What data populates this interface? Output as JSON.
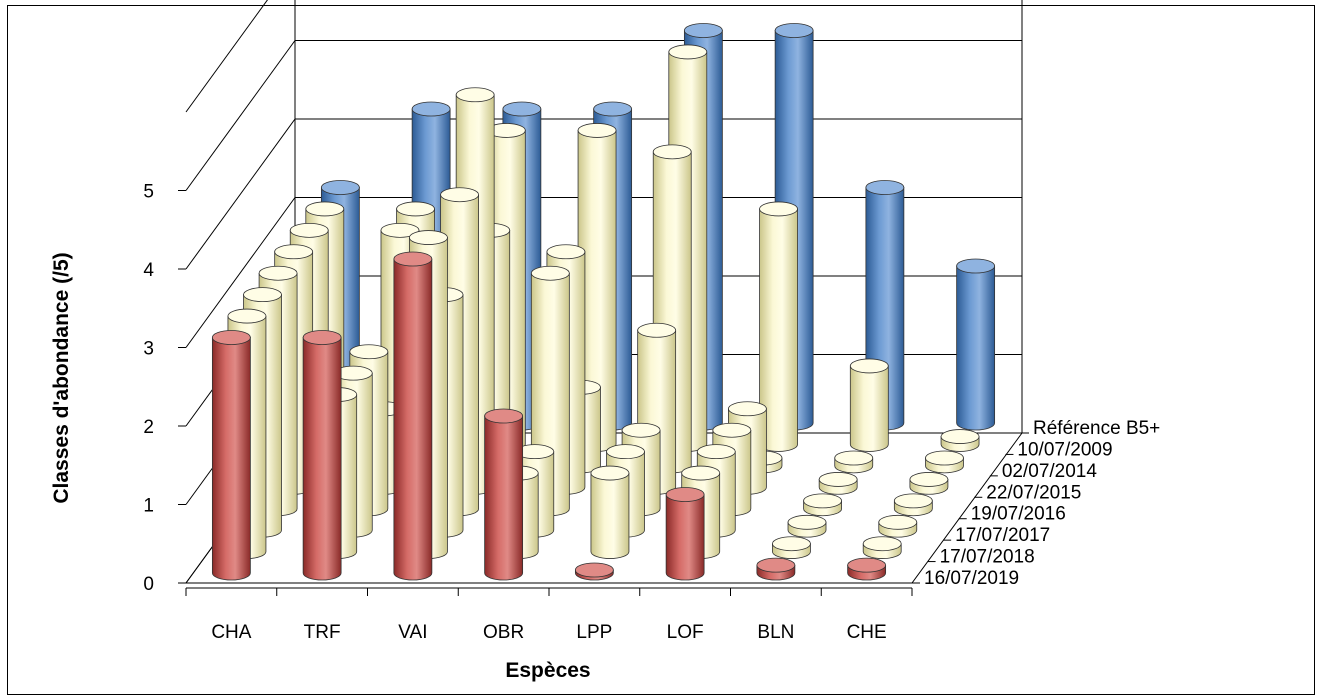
{
  "chart_data": {
    "type": "bar",
    "subtype": "3d-cylinder",
    "title": "",
    "xlabel": "Espèces",
    "ylabel": "Classes d'abondance  (/5)",
    "ylim": [
      0,
      5
    ],
    "yticks": [
      "0",
      "1",
      "2",
      "3",
      "4",
      "5"
    ],
    "categories": [
      "CHA",
      "TRF",
      "VAI",
      "OBR",
      "LPP",
      "LOF",
      "BLN",
      "CHE"
    ],
    "series": [
      {
        "name": "16/07/2019",
        "color": "#c0504d",
        "values": [
          3,
          3,
          4,
          2,
          0,
          1,
          0.1,
          0.1
        ]
      },
      {
        "name": "17/07/2018",
        "color": "#f6f3c0",
        "values": [
          3,
          2,
          4,
          1,
          1,
          1,
          0.1,
          0.1
        ]
      },
      {
        "name": "17/07/2017",
        "color": "#f6f3c0",
        "values": [
          3,
          2,
          3,
          1,
          1,
          1,
          0.1,
          0.1
        ]
      },
      {
        "name": "19/07/2016",
        "color": "#f6f3c0",
        "values": [
          3,
          2,
          4,
          3,
          1,
          1,
          0.1,
          0.1
        ]
      },
      {
        "name": "22/07/2015",
        "color": "#f6f3c0",
        "values": [
          3,
          1,
          5,
          3,
          2,
          1,
          0.1,
          0.1
        ]
      },
      {
        "name": "02/07/2014",
        "color": "#f6f3c0",
        "values": [
          3,
          3,
          3,
          1,
          4,
          0.1,
          0.1,
          0.1
        ]
      },
      {
        "name": "10/07/2009",
        "color": "#f6f3c0",
        "values": [
          3,
          3,
          4,
          4,
          5,
          3,
          1,
          0.1
        ]
      },
      {
        "name": "Référence B5+",
        "color": "#4f81bd",
        "values": [
          3,
          4,
          4,
          4,
          5,
          5,
          3,
          2
        ]
      }
    ],
    "grid": true,
    "legend": "depth-axis-right"
  }
}
